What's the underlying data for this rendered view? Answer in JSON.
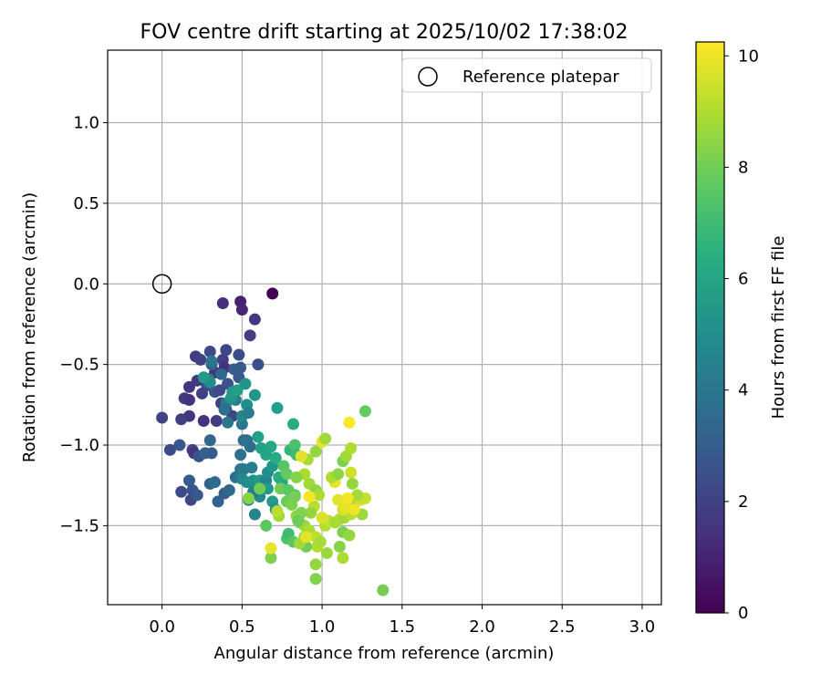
{
  "chart_data": {
    "type": "scatter",
    "title": "FOV centre drift starting at 2025/10/02 17:38:02",
    "xlabel": "Angular distance from reference (arcmin)",
    "ylabel": "Rotation from reference (arcmin)",
    "xlim": [
      -0.34,
      3.12
    ],
    "ylim": [
      -1.99,
      1.45
    ],
    "xticks": [
      "0.0",
      "0.5",
      "1.0",
      "1.5",
      "2.0",
      "2.5",
      "3.0"
    ],
    "xtick_values": [
      0,
      0.5,
      1.0,
      1.5,
      2.0,
      2.5,
      3.0
    ],
    "yticks": [
      "1.0",
      "0.5",
      "0.0",
      "−0.5",
      "−1.0",
      "−1.5"
    ],
    "ytick_values": [
      1.0,
      0.5,
      0.0,
      -0.5,
      -1.0,
      -1.5
    ],
    "grid": true,
    "legend": {
      "placement": "top-right",
      "label": "Reference platepar"
    },
    "reference_point": [
      0.0,
      0.0
    ],
    "colorbar": {
      "label": "Hours from first FF file",
      "range": [
        0,
        10.25
      ],
      "ticks": [
        "0",
        "2",
        "4",
        "6",
        "8",
        "10"
      ],
      "tick_values": [
        0,
        2,
        4,
        6,
        8,
        10
      ],
      "colormap": "viridis"
    },
    "points": [
      [
        0.69,
        -0.06,
        0.0
      ],
      [
        0.49,
        -0.11,
        1.0
      ],
      [
        0.5,
        -0.16,
        1.1
      ],
      [
        0.38,
        -0.12,
        1.4
      ],
      [
        0.58,
        -0.22,
        1.7
      ],
      [
        0.55,
        -0.32,
        1.9
      ],
      [
        0.21,
        -0.45,
        1.8
      ],
      [
        0.24,
        -0.47,
        2.0
      ],
      [
        0.3,
        -0.42,
        2.3
      ],
      [
        0.38,
        -0.47,
        2.0
      ],
      [
        0.4,
        -0.41,
        2.2
      ],
      [
        0.48,
        -0.44,
        2.4
      ],
      [
        0.6,
        -0.5,
        2.5
      ],
      [
        0.33,
        -0.55,
        1.6
      ],
      [
        0.39,
        -0.52,
        1.5
      ],
      [
        0.28,
        -0.63,
        2.5
      ],
      [
        0.33,
        -0.67,
        2.7
      ],
      [
        0.22,
        -0.6,
        1.8
      ],
      [
        0.17,
        -0.64,
        1.7
      ],
      [
        0.14,
        -0.71,
        1.8
      ],
      [
        0.17,
        -0.72,
        1.5
      ],
      [
        0.25,
        -0.68,
        2.0
      ],
      [
        0.36,
        -0.66,
        2.4
      ],
      [
        0.41,
        -0.62,
        2.6
      ],
      [
        0.48,
        -0.58,
        2.9
      ],
      [
        0.45,
        -0.53,
        3.1
      ],
      [
        0.49,
        -0.52,
        3.0
      ],
      [
        0.31,
        -0.5,
        3.2
      ],
      [
        0.37,
        -0.74,
        2.0
      ],
      [
        0.4,
        -0.78,
        2.3
      ],
      [
        0.44,
        -0.82,
        2.1
      ],
      [
        0.34,
        -0.85,
        1.8
      ],
      [
        0.26,
        -0.85,
        1.5
      ],
      [
        0.17,
        -0.82,
        1.6
      ],
      [
        0.12,
        -0.84,
        1.9
      ],
      [
        0.0,
        -0.83,
        2.1
      ],
      [
        0.05,
        -1.03,
        2.4
      ],
      [
        0.11,
        -1.0,
        2.8
      ],
      [
        0.19,
        -1.03,
        2.0
      ],
      [
        0.2,
        -1.05,
        1.6
      ],
      [
        0.23,
        -1.07,
        2.7
      ],
      [
        0.27,
        -1.05,
        3.2
      ],
      [
        0.3,
        -0.97,
        3.4
      ],
      [
        0.31,
        -1.05,
        3.0
      ],
      [
        0.12,
        -1.29,
        2.4
      ],
      [
        0.17,
        -1.22,
        3.0
      ],
      [
        0.19,
        -1.28,
        2.6
      ],
      [
        0.18,
        -1.34,
        2.2
      ],
      [
        0.22,
        -1.31,
        2.9
      ],
      [
        0.3,
        -1.24,
        3.2
      ],
      [
        0.33,
        -1.23,
        3.6
      ],
      [
        0.35,
        -1.35,
        3.3
      ],
      [
        0.39,
        -1.3,
        3.0
      ],
      [
        0.42,
        -1.28,
        3.5
      ],
      [
        0.46,
        -1.2,
        3.8
      ],
      [
        0.49,
        -1.15,
        4.0
      ],
      [
        0.49,
        -1.06,
        3.8
      ],
      [
        0.51,
        -0.97,
        3.6
      ],
      [
        0.5,
        -0.87,
        4.1
      ],
      [
        0.5,
        -0.82,
        4.7
      ],
      [
        0.53,
        -0.75,
        5.0
      ],
      [
        0.54,
        -0.8,
        4.3
      ],
      [
        0.46,
        -0.72,
        4.5
      ],
      [
        0.4,
        -0.74,
        4.2
      ],
      [
        0.43,
        -0.71,
        5.3
      ],
      [
        0.41,
        -0.86,
        4.0
      ],
      [
        0.39,
        -0.78,
        3.8
      ],
      [
        0.44,
        -0.67,
        5.5
      ],
      [
        0.47,
        -0.66,
        5.8
      ],
      [
        0.52,
        -0.62,
        5.2
      ],
      [
        0.58,
        -0.69,
        5.3
      ],
      [
        0.29,
        -0.59,
        4.3
      ],
      [
        0.3,
        -0.61,
        5.0
      ],
      [
        0.26,
        -0.58,
        5.5
      ],
      [
        0.31,
        -0.48,
        4.0
      ],
      [
        0.37,
        -0.56,
        3.5
      ],
      [
        0.53,
        -0.97,
        3.9
      ],
      [
        0.55,
        -1.01,
        3.7
      ],
      [
        0.51,
        -1.15,
        4.2
      ],
      [
        0.56,
        -1.14,
        4.4
      ],
      [
        0.5,
        -1.21,
        4.6
      ],
      [
        0.53,
        -1.23,
        4.9
      ],
      [
        0.57,
        -1.22,
        5.1
      ],
      [
        0.61,
        -1.22,
        5.5
      ],
      [
        0.65,
        -1.22,
        4.5
      ],
      [
        0.66,
        -1.17,
        5.0
      ],
      [
        0.66,
        -1.27,
        5.5
      ],
      [
        0.61,
        -1.32,
        4.8
      ],
      [
        0.57,
        -1.29,
        4.3
      ],
      [
        0.54,
        -1.34,
        4.1
      ],
      [
        0.58,
        -1.43,
        4.6
      ],
      [
        0.69,
        -1.13,
        5.3
      ],
      [
        0.69,
        -1.35,
        5.6
      ],
      [
        0.71,
        -1.4,
        5.1
      ],
      [
        0.6,
        -0.95,
        5.8
      ],
      [
        0.62,
        -1.02,
        5.9
      ],
      [
        0.65,
        -1.06,
        6.0
      ],
      [
        0.68,
        -1.01,
        6.1
      ],
      [
        0.71,
        -1.08,
        6.3
      ],
      [
        0.73,
        -1.2,
        6.5
      ],
      [
        0.75,
        -1.23,
        6.2
      ],
      [
        0.72,
        -0.77,
        5.8
      ],
      [
        0.82,
        -0.87,
        6.4
      ],
      [
        0.8,
        -1.03,
        6.8
      ],
      [
        0.83,
        -1.0,
        7.3
      ],
      [
        0.84,
        -1.06,
        7.0
      ],
      [
        0.76,
        -1.13,
        7.5
      ],
      [
        0.78,
        -1.18,
        7.8
      ],
      [
        0.74,
        -1.27,
        8.0
      ],
      [
        0.79,
        -1.28,
        7.7
      ],
      [
        0.78,
        -1.35,
        7.9
      ],
      [
        0.81,
        -1.37,
        8.2
      ],
      [
        0.84,
        -1.44,
        8.5
      ],
      [
        0.73,
        -1.44,
        8.8
      ],
      [
        0.65,
        -1.5,
        7.7
      ],
      [
        0.68,
        -1.7,
        8.2
      ],
      [
        0.54,
        -1.33,
        8.4
      ],
      [
        0.61,
        -1.27,
        8.0
      ],
      [
        0.78,
        -1.58,
        7.4
      ],
      [
        0.79,
        -1.55,
        7.0
      ],
      [
        0.82,
        -1.6,
        7.6
      ],
      [
        0.86,
        -1.48,
        8.3
      ],
      [
        0.89,
        -1.5,
        8.7
      ],
      [
        0.92,
        -1.53,
        9.0
      ],
      [
        0.96,
        -1.57,
        9.3
      ],
      [
        0.97,
        -1.63,
        9.1
      ],
      [
        0.96,
        -1.74,
        8.6
      ],
      [
        0.96,
        -1.83,
        8.3
      ],
      [
        0.99,
        -1.6,
        8.9
      ],
      [
        1.03,
        -1.67,
        8.7
      ],
      [
        1.02,
        -1.5,
        9.1
      ],
      [
        1.04,
        -1.47,
        9.4
      ],
      [
        1.08,
        -1.48,
        8.9
      ],
      [
        1.11,
        -1.46,
        9.0
      ],
      [
        1.14,
        -1.45,
        8.8
      ],
      [
        1.18,
        -1.43,
        9.2
      ],
      [
        1.2,
        -1.37,
        9.5
      ],
      [
        1.24,
        -1.34,
        9.6
      ],
      [
        1.25,
        -1.43,
        8.7
      ],
      [
        1.27,
        -1.33,
        9.4
      ],
      [
        1.22,
        -1.31,
        8.9
      ],
      [
        1.17,
        -1.36,
        8.8
      ],
      [
        1.13,
        -1.4,
        9.6
      ],
      [
        1.15,
        -1.39,
        9.9
      ],
      [
        1.1,
        -1.34,
        9.8
      ],
      [
        1.08,
        -1.23,
        9.9
      ],
      [
        1.06,
        -1.2,
        9.0
      ],
      [
        1.1,
        -1.18,
        8.5
      ],
      [
        1.13,
        -1.1,
        8.2
      ],
      [
        1.15,
        -1.07,
        8.8
      ],
      [
        1.18,
        -1.02,
        9.0
      ],
      [
        1.18,
        -1.17,
        9.5
      ],
      [
        1.19,
        -1.24,
        8.6
      ],
      [
        1.0,
        -0.98,
        9.9
      ],
      [
        1.02,
        -0.96,
        8.8
      ],
      [
        0.96,
        -1.04,
        8.6
      ],
      [
        0.91,
        -1.09,
        8.9
      ],
      [
        0.89,
        -1.18,
        9.0
      ],
      [
        0.92,
        -1.24,
        8.8
      ],
      [
        0.96,
        -1.28,
        8.5
      ],
      [
        0.98,
        -1.31,
        9.0
      ],
      [
        0.95,
        -1.38,
        9.2
      ],
      [
        0.93,
        -1.42,
        8.6
      ],
      [
        0.87,
        -1.42,
        8.3
      ],
      [
        0.85,
        -1.47,
        8.0
      ],
      [
        0.89,
        -1.57,
        8.5
      ],
      [
        0.9,
        -1.63,
        8.0
      ],
      [
        0.86,
        -1.61,
        8.8
      ],
      [
        0.72,
        -1.41,
        9.2
      ],
      [
        0.83,
        -1.31,
        7.5
      ],
      [
        0.83,
        -1.32,
        8.1
      ],
      [
        0.84,
        -1.2,
        8.4
      ],
      [
        0.87,
        -1.07,
        9.8
      ],
      [
        0.92,
        -1.32,
        10.1
      ],
      [
        0.9,
        -1.57,
        9.9
      ],
      [
        1.0,
        -1.45,
        9.7
      ],
      [
        1.13,
        -1.54,
        8.2
      ],
      [
        1.17,
        -1.56,
        8.6
      ],
      [
        1.11,
        -1.63,
        8.4
      ],
      [
        1.13,
        -1.7,
        9.0
      ],
      [
        1.38,
        -1.9,
        8.1
      ],
      [
        1.27,
        -0.79,
        7.8
      ],
      [
        1.17,
        -0.86,
        10.2
      ],
      [
        0.68,
        -1.64,
        9.9
      ],
      [
        1.16,
        -1.33,
        10.1
      ],
      [
        1.2,
        -1.4,
        10.0
      ]
    ]
  }
}
